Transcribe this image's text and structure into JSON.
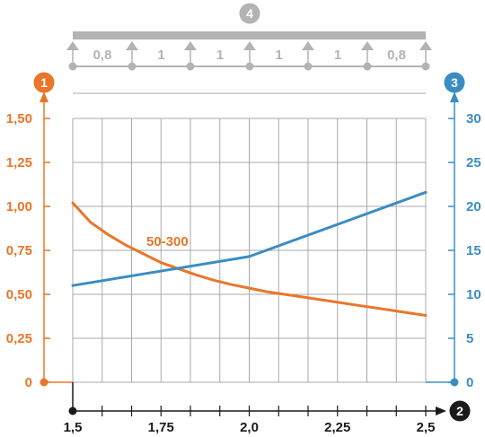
{
  "badges": {
    "left_axis": "1",
    "right_axis": "3",
    "x_axis": "2",
    "support_beam": "4"
  },
  "colors": {
    "left": "#e8762b",
    "right": "#3a8dc2",
    "grey": "#b3b3b3",
    "grid": "#a9a9a9",
    "axis": "#1a1a1a"
  },
  "beam": {
    "span_labels": [
      "0,8",
      "1",
      "1",
      "1",
      "1",
      "0,8"
    ]
  },
  "chart_data": {
    "type": "line",
    "title": "",
    "xlabel": "",
    "x_range": [
      1.5,
      2.5
    ],
    "x_ticks": [
      1.5,
      1.75,
      2.0,
      2.25,
      2.5
    ],
    "x_tick_labels": [
      "1,5",
      "1,75",
      "2,0",
      "2,25",
      "2,5"
    ],
    "y_left": {
      "range": [
        0,
        1.5
      ],
      "ticks": [
        0,
        0.25,
        0.5,
        0.75,
        1.0,
        1.25,
        1.5
      ],
      "tick_labels": [
        "0",
        "0,25",
        "0,50",
        "0,75",
        "1,00",
        "1,25",
        "1,50"
      ]
    },
    "y_right": {
      "range": [
        0,
        30
      ],
      "ticks": [
        0,
        5,
        10,
        15,
        20,
        25,
        30
      ],
      "tick_labels": [
        "0",
        "5",
        "10",
        "15",
        "20",
        "25",
        "30"
      ]
    },
    "grid": true,
    "series": [
      {
        "name": "50-300",
        "axis": "left",
        "color": "#e8762b",
        "x": [
          1.5,
          1.55,
          1.6,
          1.65,
          1.7,
          1.75,
          1.8,
          1.85,
          1.9,
          1.95,
          2.0,
          2.05,
          2.1,
          2.15,
          2.2,
          2.25,
          2.3,
          2.35,
          2.4,
          2.45,
          2.5
        ],
        "y": [
          1.02,
          0.91,
          0.84,
          0.78,
          0.73,
          0.68,
          0.645,
          0.61,
          0.58,
          0.555,
          0.535,
          0.515,
          0.5,
          0.485,
          0.47,
          0.455,
          0.44,
          0.425,
          0.41,
          0.395,
          0.38
        ]
      },
      {
        "axis": "right",
        "color": "#3a8dc2",
        "x": [
          1.5,
          2.0,
          2.5
        ],
        "y": [
          11.0,
          14.3,
          21.6
        ]
      }
    ]
  }
}
